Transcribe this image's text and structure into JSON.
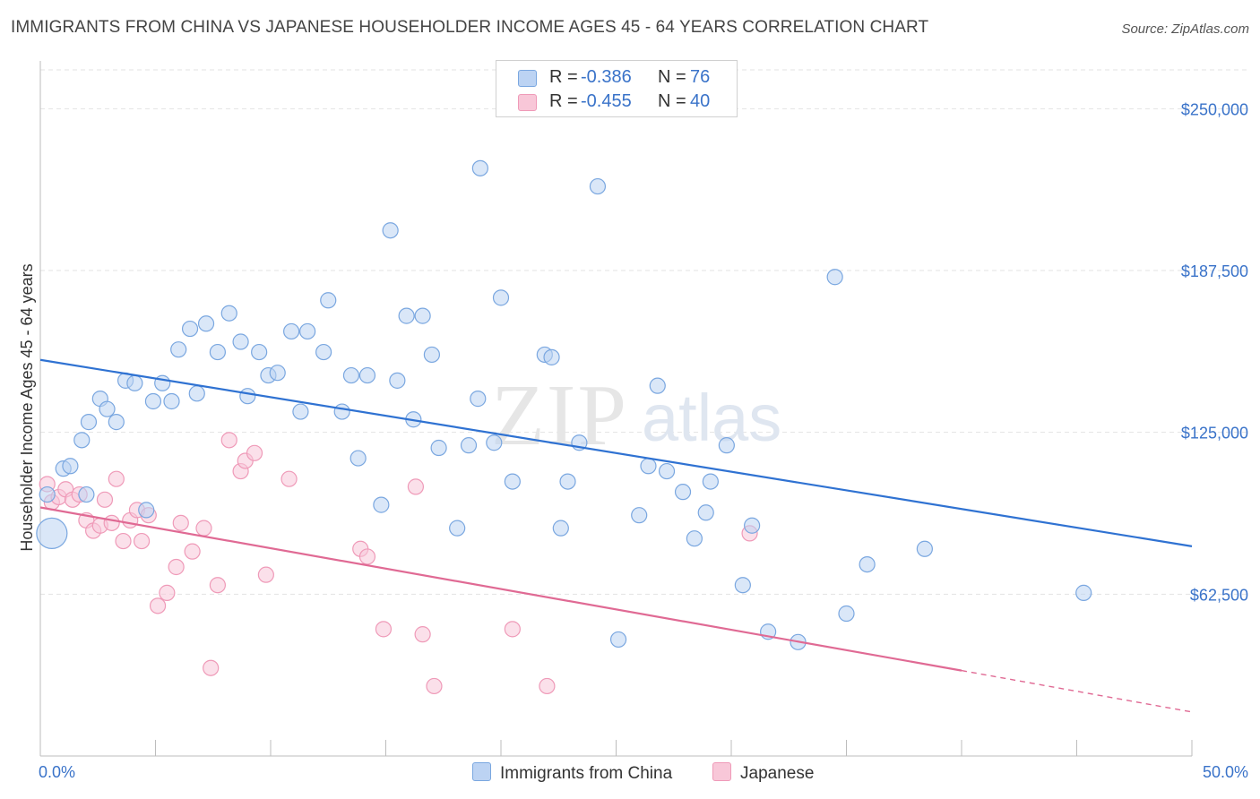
{
  "header": {
    "title": "IMMIGRANTS FROM CHINA VS JAPANESE HOUSEHOLDER INCOME AGES 45 - 64 YEARS CORRELATION CHART",
    "source": "Source: ZipAtlas.com"
  },
  "watermark": {
    "zip": "ZIP",
    "atlas": "atlas"
  },
  "legend": {
    "r_label": "R =",
    "n_label": "N =",
    "rows": [
      {
        "r": "-0.386",
        "n": "76"
      },
      {
        "r": "-0.455",
        "n": "40"
      }
    ]
  },
  "chart_data": {
    "type": "scatter",
    "title": "IMMIGRANTS FROM CHINA VS JAPANESE HOUSEHOLDER INCOME AGES 45 - 64 YEARS CORRELATION CHART",
    "xlabel": "",
    "ylabel": "Householder Income Ages 45 - 64 years",
    "xlim": [
      0,
      50
    ],
    "ylim": [
      0,
      265000
    ],
    "x_tick_labels": [
      "0.0%",
      "50.0%"
    ],
    "y_ticks": [
      62500,
      125000,
      187500,
      250000
    ],
    "y_tick_labels": [
      "$62,500",
      "$125,000",
      "$187,500",
      "$250,000"
    ],
    "grid": true,
    "legend_position": "bottom",
    "colors": {
      "china": "#7aa7e0",
      "japanese": "#ef9ab8",
      "china_line": "#2f72d2",
      "japanese_line": "#e06a94"
    },
    "series": [
      {
        "name": "Immigrants from China",
        "trendline": {
          "x": [
            0,
            50
          ],
          "y": [
            153000,
            81000
          ]
        },
        "points": [
          [
            0.3,
            101000
          ],
          [
            1.0,
            111000
          ],
          [
            1.3,
            112000
          ],
          [
            1.8,
            122000
          ],
          [
            2.1,
            129000
          ],
          [
            2.6,
            138000
          ],
          [
            2.9,
            134000
          ],
          [
            3.3,
            129000
          ],
          [
            3.7,
            145000
          ],
          [
            4.1,
            144000
          ],
          [
            4.6,
            95000
          ],
          [
            4.9,
            137000
          ],
          [
            5.3,
            144000
          ],
          [
            5.7,
            137000
          ],
          [
            6.0,
            157000
          ],
          [
            6.5,
            165000
          ],
          [
            6.8,
            140000
          ],
          [
            7.2,
            167000
          ],
          [
            7.7,
            156000
          ],
          [
            8.2,
            171000
          ],
          [
            8.7,
            160000
          ],
          [
            9.0,
            139000
          ],
          [
            9.5,
            156000
          ],
          [
            9.9,
            147000
          ],
          [
            10.3,
            148000
          ],
          [
            10.9,
            164000
          ],
          [
            11.3,
            133000
          ],
          [
            11.6,
            164000
          ],
          [
            12.3,
            156000
          ],
          [
            12.5,
            176000
          ],
          [
            13.1,
            133000
          ],
          [
            13.5,
            147000
          ],
          [
            13.8,
            115000
          ],
          [
            14.2,
            147000
          ],
          [
            14.8,
            97000
          ],
          [
            15.2,
            203000
          ],
          [
            15.5,
            145000
          ],
          [
            15.9,
            170000
          ],
          [
            16.2,
            130000
          ],
          [
            16.6,
            170000
          ],
          [
            17.0,
            155000
          ],
          [
            17.3,
            119000
          ],
          [
            18.1,
            88000
          ],
          [
            18.6,
            120000
          ],
          [
            19.0,
            138000
          ],
          [
            19.1,
            227000
          ],
          [
            19.7,
            121000
          ],
          [
            20.0,
            177000
          ],
          [
            20.5,
            106000
          ],
          [
            21.9,
            155000
          ],
          [
            22.2,
            154000
          ],
          [
            22.6,
            88000
          ],
          [
            22.9,
            106000
          ],
          [
            23.4,
            121000
          ],
          [
            24.2,
            220000
          ],
          [
            25.1,
            45000
          ],
          [
            26.0,
            93000
          ],
          [
            26.4,
            112000
          ],
          [
            26.8,
            143000
          ],
          [
            27.2,
            110000
          ],
          [
            27.9,
            102000
          ],
          [
            28.4,
            84000
          ],
          [
            28.9,
            94000
          ],
          [
            29.1,
            106000
          ],
          [
            29.8,
            120000
          ],
          [
            30.5,
            66000
          ],
          [
            30.9,
            89000
          ],
          [
            31.6,
            48000
          ],
          [
            32.9,
            44000
          ],
          [
            34.5,
            185000
          ],
          [
            35.0,
            55000
          ],
          [
            35.9,
            74000
          ],
          [
            38.4,
            80000
          ],
          [
            45.3,
            63000
          ],
          [
            0.5,
            86000
          ],
          [
            2.0,
            101000
          ]
        ]
      },
      {
        "name": "Japanese",
        "trendline": {
          "x": [
            0,
            40
          ],
          "y": [
            96000,
            33000
          ],
          "dashed_extension": {
            "x": [
              40,
              50
            ],
            "y": [
              33000,
              17000
            ]
          }
        },
        "points": [
          [
            0.3,
            105000
          ],
          [
            0.5,
            98000
          ],
          [
            0.8,
            100000
          ],
          [
            1.1,
            103000
          ],
          [
            1.4,
            99000
          ],
          [
            1.7,
            101000
          ],
          [
            2.0,
            91000
          ],
          [
            2.3,
            87000
          ],
          [
            2.6,
            89000
          ],
          [
            2.8,
            99000
          ],
          [
            3.1,
            90000
          ],
          [
            3.3,
            107000
          ],
          [
            3.6,
            83000
          ],
          [
            3.9,
            91000
          ],
          [
            4.2,
            95000
          ],
          [
            4.4,
            83000
          ],
          [
            4.7,
            93000
          ],
          [
            5.1,
            58000
          ],
          [
            5.5,
            63000
          ],
          [
            5.9,
            73000
          ],
          [
            6.1,
            90000
          ],
          [
            6.6,
            79000
          ],
          [
            7.1,
            88000
          ],
          [
            7.4,
            34000
          ],
          [
            7.7,
            66000
          ],
          [
            8.2,
            122000
          ],
          [
            8.7,
            110000
          ],
          [
            8.9,
            114000
          ],
          [
            9.3,
            117000
          ],
          [
            9.8,
            70000
          ],
          [
            10.8,
            107000
          ],
          [
            13.9,
            80000
          ],
          [
            14.2,
            77000
          ],
          [
            14.9,
            49000
          ],
          [
            16.3,
            104000
          ],
          [
            16.6,
            47000
          ],
          [
            17.1,
            27000
          ],
          [
            20.5,
            49000
          ],
          [
            22.0,
            27000
          ],
          [
            30.8,
            86000
          ]
        ]
      }
    ]
  },
  "bottom_legend": {
    "china": "Immigrants from China",
    "japanese": "Japanese"
  }
}
